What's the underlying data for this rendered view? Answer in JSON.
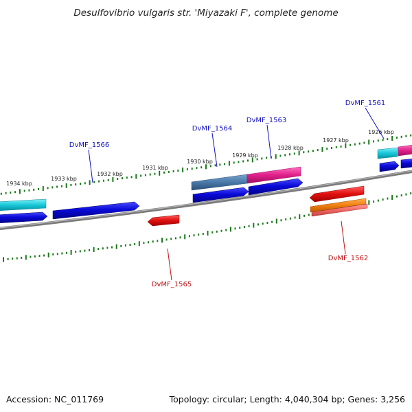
{
  "title": "Desulfovibrio vulgaris str. 'Miyazaki F', complete genome",
  "footer": {
    "accession": "Accession: NC_011769",
    "topology": "Topology: circular; Length: 4,040,304 bp; Genes: 3,256"
  },
  "colors": {
    "backbone": "#7a7a7a",
    "tick": "#1a7a1a",
    "label_forward": "#1010c0",
    "label_reverse": "#c01010",
    "gene_blue": "#0a0ad8",
    "gene_cyan": "#18c8d8",
    "gene_steel": "#4a78a8",
    "gene_pink": "#e0208a",
    "gene_red": "#e01010",
    "gene_orange": "#f08010",
    "gene_salmon": "#f06860"
  },
  "kbp_labels": [
    "1934 kbp",
    "1933 kbp",
    "1932 kbp",
    "1931 kbp",
    "1930 kbp",
    "1929 kbp",
    "1928 kbp",
    "1927 kbp",
    "1926 kbp"
  ],
  "gene_labels": [
    {
      "id": "vm-1566",
      "text": "DvMF_1566",
      "strand": "forward"
    },
    {
      "id": "vm-1564",
      "text": "DvMF_1564",
      "strand": "forward"
    },
    {
      "id": "vm-1563",
      "text": "DvMF_1563",
      "strand": "forward"
    },
    {
      "id": "vm-1561",
      "text": "DvMF_1561",
      "strand": "forward"
    },
    {
      "id": "vm-1565",
      "text": "DvMF_1565",
      "strand": "reverse"
    },
    {
      "id": "vm-1562",
      "text": "DvMF_1562",
      "strand": "reverse"
    }
  ]
}
